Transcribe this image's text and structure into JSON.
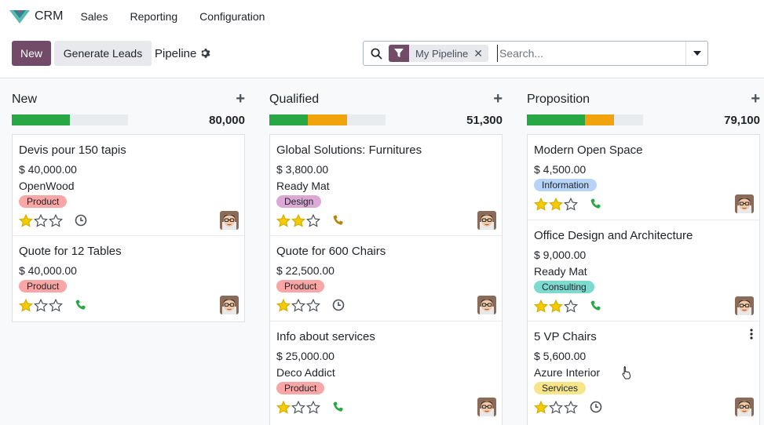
{
  "nav": {
    "app_name": "CRM",
    "menus": [
      "Sales",
      "Reporting",
      "Configuration"
    ]
  },
  "control": {
    "new_label": "New",
    "generate_label": "Generate Leads",
    "view_title": "Pipeline",
    "search": {
      "facet_label": "My Pipeline",
      "placeholder": "Search..."
    }
  },
  "colors": {
    "primary": "#714b67",
    "progress_green": "#28a745",
    "progress_orange": "#f0a30a",
    "star_filled": "#f3cc00",
    "phone_green": "#28a745",
    "phone_brown": "#b8860b"
  },
  "columns": [
    {
      "title": "New",
      "total": "80,000",
      "progress": [
        {
          "color": "green",
          "pct": 50
        }
      ],
      "cards": [
        {
          "title": "Devis pour 150 tapis",
          "amount": "$ 40,000.00",
          "partner": "OpenWood",
          "tag": "Product",
          "tag_color": "#f8a6a6",
          "stars": 1,
          "activity": "clock-icon"
        },
        {
          "title": "Quote for 12 Tables",
          "amount": "$ 40,000.00",
          "partner": "",
          "tag": "Product",
          "tag_color": "#f8a6a6",
          "stars": 1,
          "activity": "phone-icon"
        }
      ]
    },
    {
      "title": "Qualified",
      "total": "51,300",
      "progress": [
        {
          "color": "green",
          "pct": 33
        },
        {
          "color": "orange",
          "pct": 34
        }
      ],
      "cards": [
        {
          "title": "Global Solutions: Furnitures",
          "amount": "$ 3,800.00",
          "partner": "Ready Mat",
          "tag": "Design",
          "tag_color": "#dba9d6",
          "stars": 2,
          "activity": "phone-brown-icon"
        },
        {
          "title": "Quote for 600 Chairs",
          "amount": "$ 22,500.00",
          "partner": "",
          "tag": "Product",
          "tag_color": "#f8a6a6",
          "stars": 1,
          "activity": "clock-icon"
        },
        {
          "title": "Info about services",
          "amount": "$ 25,000.00",
          "partner": "Deco Addict",
          "tag": "Product",
          "tag_color": "#f8a6a6",
          "stars": 1,
          "activity": "phone-icon"
        }
      ]
    },
    {
      "title": "Proposition",
      "total": "79,100",
      "progress": [
        {
          "color": "green",
          "pct": 50
        },
        {
          "color": "orange",
          "pct": 25
        }
      ],
      "cards": [
        {
          "title": "Modern Open Space",
          "amount": "$ 4,500.00",
          "partner": "",
          "tag": "Information",
          "tag_color": "#b6d4f7",
          "stars": 2,
          "activity": "phone-icon"
        },
        {
          "title": "Office Design and Architecture",
          "amount": "$ 9,000.00",
          "partner": "Ready Mat",
          "tag": "Consulting",
          "tag_color": "#7ed9cf",
          "stars": 2,
          "activity": "phone-icon"
        },
        {
          "title": "5 VP Chairs",
          "amount": "$ 5,600.00",
          "partner": "Azure Interior",
          "tag": "Services",
          "tag_color": "#f8e58a",
          "stars": 1,
          "activity": "clock-icon"
        }
      ]
    }
  ]
}
